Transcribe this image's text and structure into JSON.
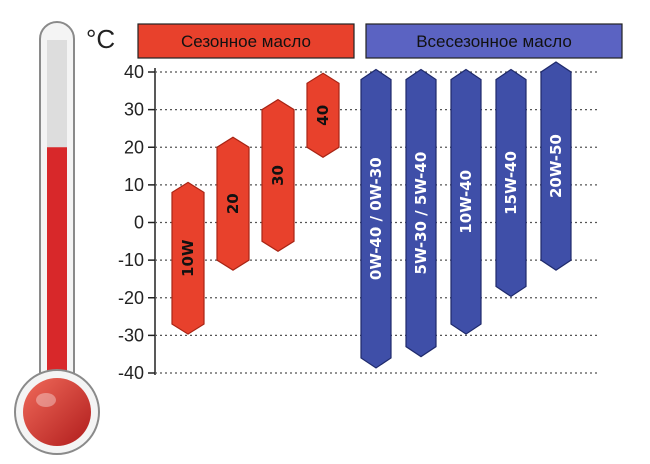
{
  "colors": {
    "seasonal": "#e8412c",
    "seasonal_stroke": "#a82414",
    "allseason": "#3f4fa8",
    "allseason_stroke": "#1f2a6b",
    "thermo_red": "#d8282a",
    "grid": "#555555"
  },
  "chart_data": {
    "type": "bar",
    "unit": "°C",
    "ylim": [
      -40,
      40
    ],
    "yticks": [
      40,
      30,
      20,
      10,
      0,
      -10,
      -20,
      -30,
      -40
    ],
    "grid": true,
    "thermometer_level": 20,
    "legend": [
      {
        "key": "seasonal",
        "label": "Сезонное масло"
      },
      {
        "key": "allseason",
        "label": "Всесезонное масло"
      }
    ],
    "series": [
      {
        "group": "seasonal",
        "label": "10W",
        "range": [
          -27,
          8
        ]
      },
      {
        "group": "seasonal",
        "label": "20",
        "range": [
          -10,
          20
        ]
      },
      {
        "group": "seasonal",
        "label": "30",
        "range": [
          -5,
          30
        ]
      },
      {
        "group": "seasonal",
        "label": "40",
        "range": [
          20,
          37
        ]
      },
      {
        "group": "allseason",
        "label": "0W-40 / 0W-30",
        "range": [
          -36,
          38
        ]
      },
      {
        "group": "allseason",
        "label": "5W-30 / 5W-40",
        "range": [
          -33,
          38
        ]
      },
      {
        "group": "allseason",
        "label": "10W-40",
        "range": [
          -27,
          38
        ]
      },
      {
        "group": "allseason",
        "label": "15W-40",
        "range": [
          -17,
          38
        ]
      },
      {
        "group": "allseason",
        "label": "20W-50",
        "range": [
          -10,
          40
        ]
      }
    ]
  }
}
